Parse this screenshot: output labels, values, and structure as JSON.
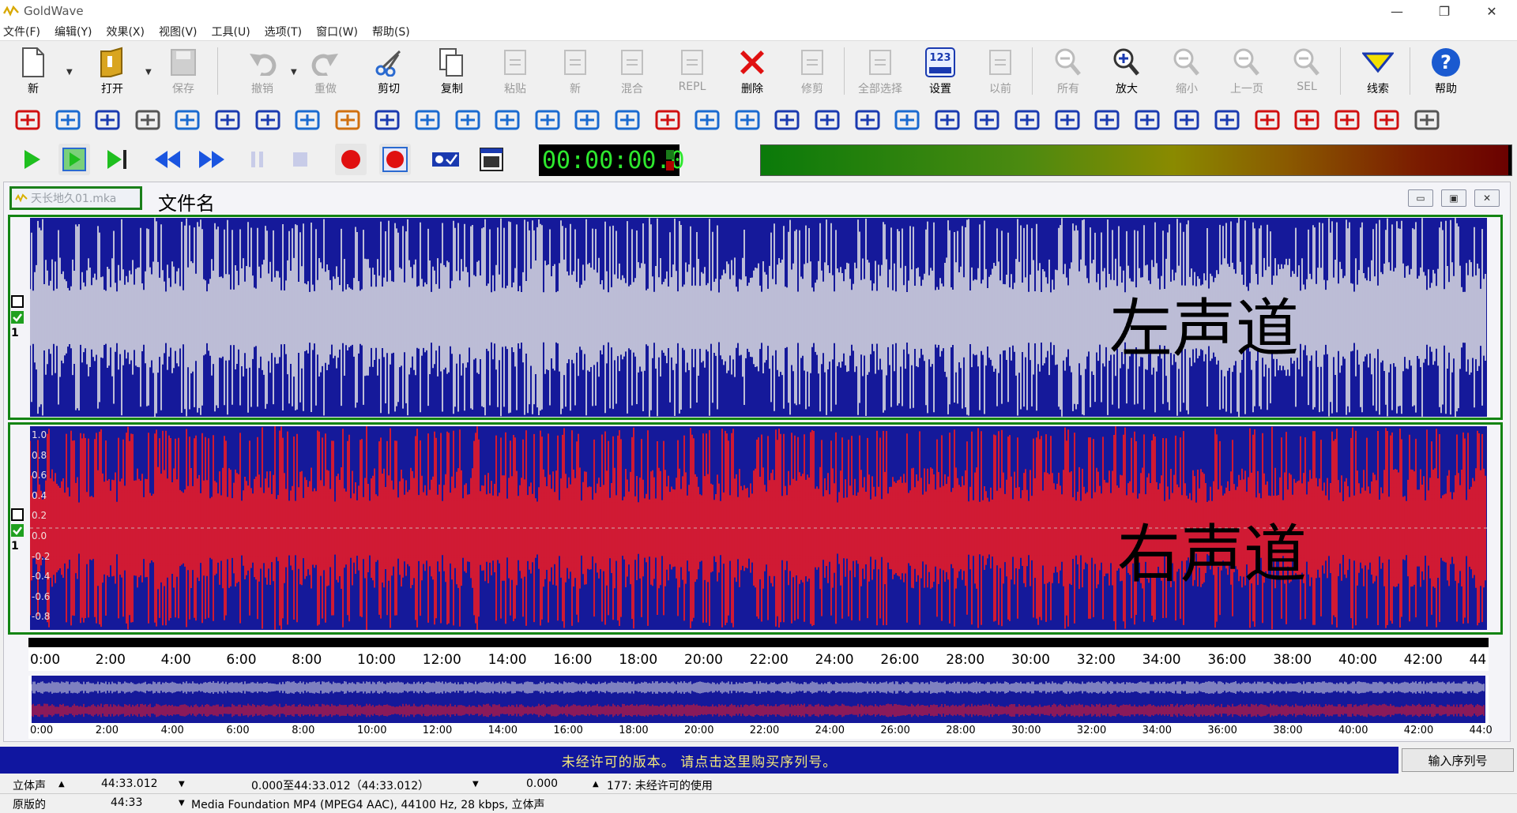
{
  "window": {
    "title": "GoldWave"
  },
  "menu": [
    "文件(F)",
    "编辑(Y)",
    "效果(X)",
    "视图(V)",
    "工具(U)",
    "选项(T)",
    "窗口(W)",
    "帮助(S)"
  ],
  "toolbar": [
    {
      "label": "新",
      "icon": "new-file-icon"
    },
    {
      "label": "打开",
      "icon": "open-folder-icon"
    },
    {
      "label": "保存",
      "icon": "save-icon",
      "disabled": true
    },
    {
      "label": "撤销",
      "icon": "undo-icon",
      "disabled": true
    },
    {
      "label": "重做",
      "icon": "redo-icon",
      "disabled": true
    },
    {
      "label": "剪切",
      "icon": "scissors-icon"
    },
    {
      "label": "复制",
      "icon": "copy-icon"
    },
    {
      "label": "粘贴",
      "icon": "paste-icon",
      "disabled": true
    },
    {
      "label": "新",
      "icon": "paste-new-icon",
      "disabled": true
    },
    {
      "label": "混合",
      "icon": "mix-icon",
      "disabled": true
    },
    {
      "label": "REPL",
      "icon": "replace-icon",
      "disabled": true
    },
    {
      "label": "删除",
      "icon": "delete-icon"
    },
    {
      "label": "修剪",
      "icon": "trim-icon",
      "disabled": true
    },
    {
      "label": "全部选择",
      "icon": "select-all-icon",
      "disabled": true
    },
    {
      "label": "设置",
      "icon": "set-marker-icon"
    },
    {
      "label": "以前",
      "icon": "previous-selection-icon",
      "disabled": true
    },
    {
      "label": "所有",
      "icon": "zoom-all-icon",
      "disabled": true
    },
    {
      "label": "放大",
      "icon": "zoom-in-icon"
    },
    {
      "label": "缩小",
      "icon": "zoom-out-icon",
      "disabled": true
    },
    {
      "label": "上一页",
      "icon": "zoom-previous-icon",
      "disabled": true
    },
    {
      "label": "SEL",
      "icon": "zoom-selection-icon",
      "disabled": true
    },
    {
      "label": "线索",
      "icon": "cue-icon"
    },
    {
      "label": "帮助",
      "icon": "help-icon"
    }
  ],
  "transport": {
    "time": "00:00:00.0"
  },
  "document": {
    "tab_title": "天长地久01.mka",
    "annotation_filename": "文件名",
    "left_label": "左声道",
    "right_label": "右声道",
    "channel_index": "1",
    "colors": {
      "background": "#15199a",
      "left_wave": "#e6e6e6",
      "right_wave": "#ff1a1a"
    },
    "amplitude_ticks": [
      "1.0",
      "0.8",
      "0.6",
      "0.4",
      "0.2",
      "0.0",
      "-0.2",
      "-0.4",
      "-0.6",
      "-0.8"
    ],
    "timeline": [
      "0:00",
      "2:00",
      "4:00",
      "6:00",
      "8:00",
      "10:00",
      "12:00",
      "14:00",
      "16:00",
      "18:00",
      "20:00",
      "22:00",
      "24:00",
      "26:00",
      "28:00",
      "30:00",
      "32:00",
      "34:00",
      "36:00",
      "38:00",
      "40:00",
      "42:00",
      "44"
    ],
    "overview_timeline": [
      "0:00",
      "2:00",
      "4:00",
      "6:00",
      "8:00",
      "10:00",
      "12:00",
      "14:00",
      "16:00",
      "18:00",
      "20:00",
      "22:00",
      "24:00",
      "26:00",
      "28:00",
      "30:00",
      "32:00",
      "34:00",
      "36:00",
      "38:00",
      "40:00",
      "42:00",
      "44:0"
    ]
  },
  "register": {
    "message": "未经许可的版本。 请点击这里购买序列号。",
    "button": "输入序列号"
  },
  "status": {
    "row1": {
      "channels": "立体声",
      "length": "44:33.012",
      "selection": "0.000至44:33.012（44:33.012）",
      "position": "0.000",
      "license": "177: 未经许可的使用"
    },
    "row2": {
      "label": "原版的",
      "length": "44:33",
      "format": "Media Foundation MP4 (MPEG4 AAC), 44100 Hz, 28 kbps, 立体声"
    }
  }
}
